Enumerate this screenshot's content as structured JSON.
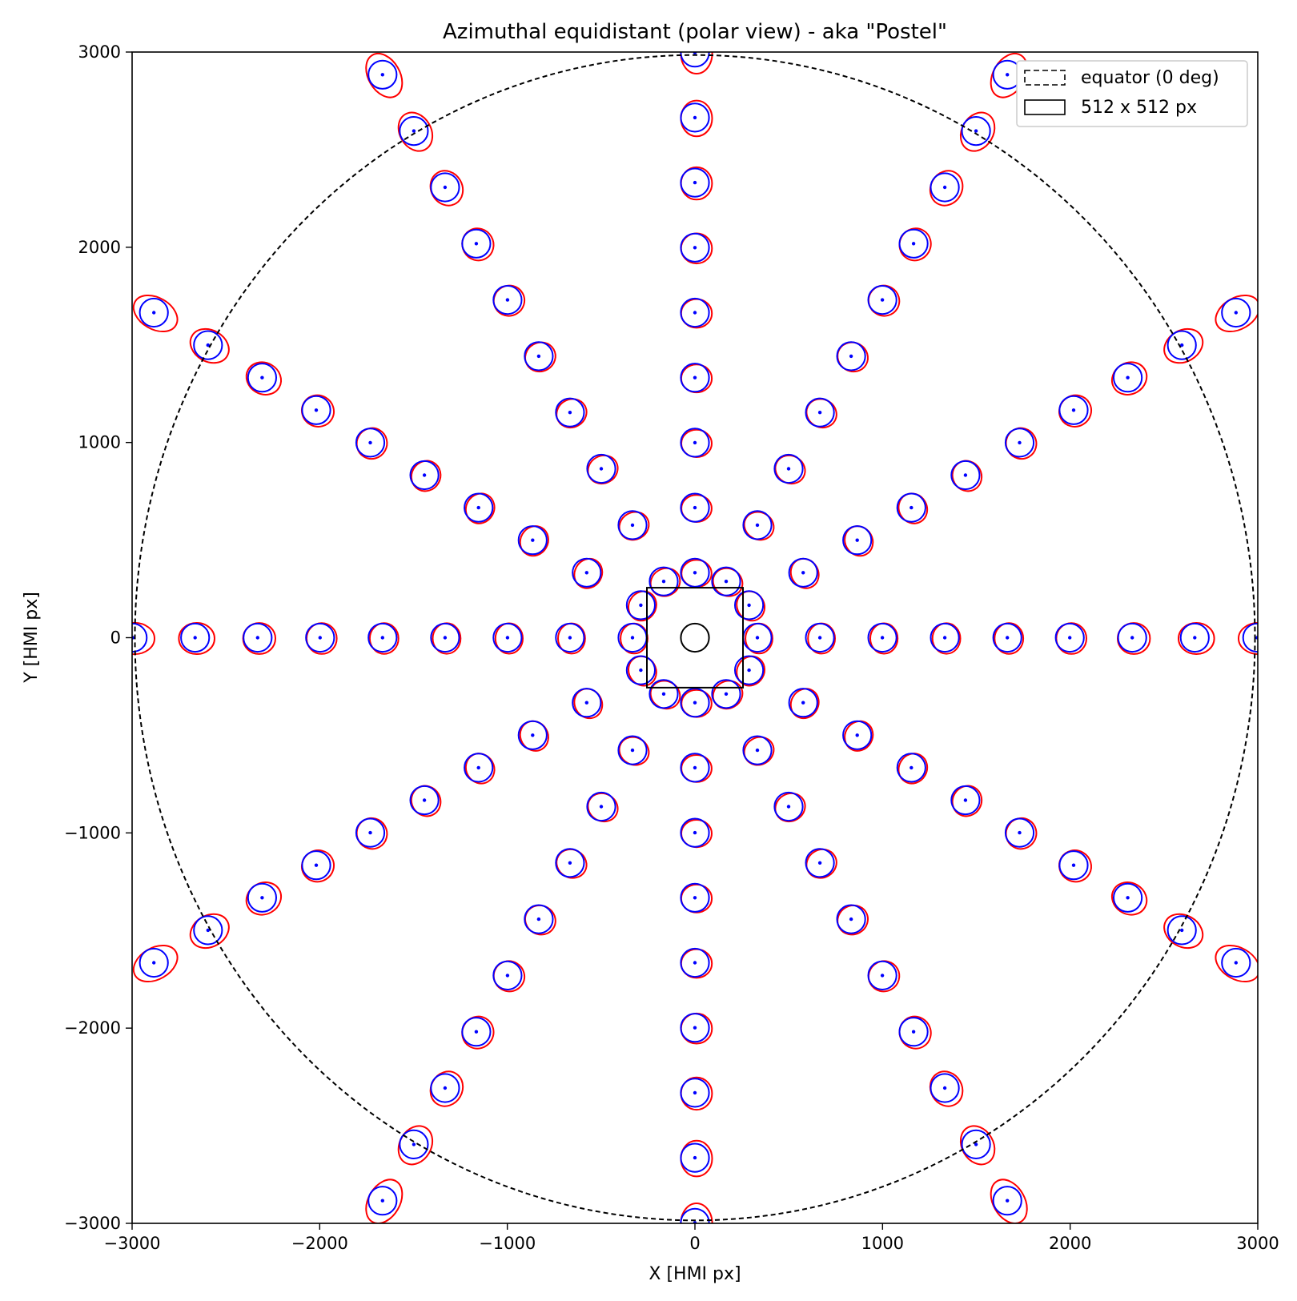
{
  "chart_data": {
    "type": "scatter",
    "title": "Azimuthal equidistant (polar view) - aka \"Postel\"",
    "xlabel": "X [HMI px]",
    "ylabel": "Y [HMI px]",
    "xlim": [
      -3000,
      3000
    ],
    "ylim": [
      -3000,
      3000
    ],
    "xticks": [
      -3000,
      -2000,
      -1000,
      0,
      1000,
      2000,
      3000
    ],
    "yticks": [
      -3000,
      -2000,
      -1000,
      0,
      1000,
      2000,
      3000
    ],
    "xtick_labels": [
      "−3000",
      "−2000",
      "−1000",
      "0",
      "1000",
      "2000",
      "3000"
    ],
    "ytick_labels": [
      "−3000",
      "−2000",
      "−1000",
      "0",
      "1000",
      "2000",
      "3000"
    ],
    "grid": false,
    "legend_position": "top-right",
    "legend": [
      {
        "label": "equator (0 deg)",
        "style": "dashed-box"
      },
      {
        "label": "512 x 512 px",
        "style": "solid-box"
      }
    ],
    "equator_radius": 2985,
    "box_halfwidth": 256,
    "center_circle_radius": 75,
    "marker_circle_radius": 75,
    "spokes": [
      {
        "angle_deg": 0,
        "radii": [
          333,
          666,
          999,
          1332,
          1665,
          1998,
          2331,
          2664,
          2997
        ]
      },
      {
        "angle_deg": 90,
        "radii": [
          333,
          666,
          999,
          1332,
          1665,
          1998,
          2331,
          2664,
          2997
        ]
      },
      {
        "angle_deg": 180,
        "radii": [
          333,
          666,
          999,
          1332,
          1665,
          1998,
          2331,
          2664,
          2997
        ]
      },
      {
        "angle_deg": 270,
        "radii": [
          333,
          666,
          999,
          1332,
          1665,
          1998,
          2331,
          2664,
          2997
        ]
      },
      {
        "angle_deg": 30,
        "radii": [
          333,
          666,
          999,
          1332,
          1665,
          1998,
          2331,
          2664,
          2997,
          3330
        ]
      },
      {
        "angle_deg": 60,
        "radii": [
          333,
          666,
          999,
          1332,
          1665,
          1998,
          2331,
          2664,
          2997,
          3330
        ]
      },
      {
        "angle_deg": 120,
        "radii": [
          333,
          666,
          999,
          1332,
          1665,
          1998,
          2331,
          2664,
          2997,
          3330
        ]
      },
      {
        "angle_deg": 150,
        "radii": [
          333,
          666,
          999,
          1332,
          1665,
          1998,
          2331,
          2664,
          2997,
          3330
        ]
      },
      {
        "angle_deg": 210,
        "radii": [
          333,
          666,
          999,
          1332,
          1665,
          1998,
          2331,
          2664,
          2997,
          3330
        ]
      },
      {
        "angle_deg": 240,
        "radii": [
          333,
          666,
          999,
          1332,
          1665,
          1998,
          2331,
          2664,
          2997,
          3330
        ]
      },
      {
        "angle_deg": 300,
        "radii": [
          333,
          666,
          999,
          1332,
          1665,
          1998,
          2331,
          2664,
          2997,
          3330
        ]
      },
      {
        "angle_deg": 330,
        "radii": [
          333,
          666,
          999,
          1332,
          1665,
          1998,
          2331,
          2664,
          2997,
          3330
        ]
      }
    ],
    "colors": {
      "circle": "#0000ff",
      "ellipse": "#ff0000",
      "center_dot": "#0000ff",
      "equator": "#000000",
      "box": "#000000"
    }
  }
}
